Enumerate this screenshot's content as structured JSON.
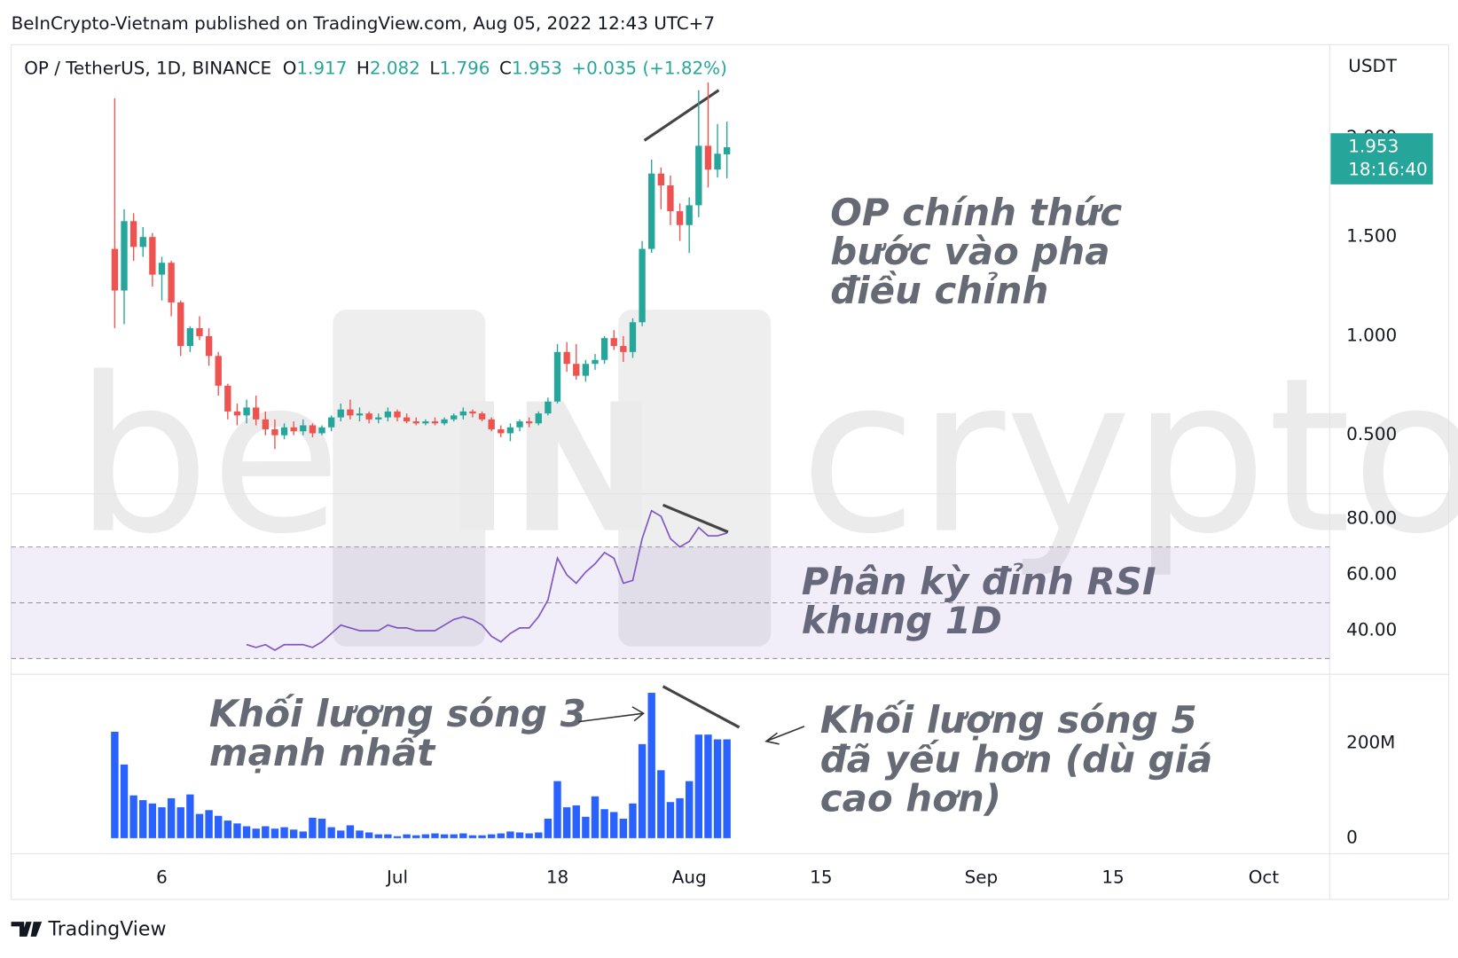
{
  "header": "BeInCrypto-Vietnam published on TradingView.com, Aug 05, 2022 12:43 UTC+7",
  "footer": "TradingView",
  "watermark": [
    "be",
    "IN",
    "crypto"
  ],
  "annotations": [
    [
      "OP chính thức",
      "bước vào pha",
      "điều chỉnh"
    ],
    [
      "Phân kỳ đỉnh RSI",
      "khung 1D"
    ],
    [
      "Khối lượng sóng 3",
      "mạnh nhất"
    ],
    [
      "Khối lượng sóng 5",
      "đã yếu hơn (dù giá",
      "cao hơn)"
    ]
  ],
  "chart_data": [
    {
      "type": "candlestick",
      "symbol": "OP / TetherUS, 1D, BINANCE",
      "ohlc_labels": [
        "O",
        "H",
        "L",
        "C"
      ],
      "change": "+0.035 (+1.82%)",
      "axis_unit": "USDT",
      "countdown": "18:16:40",
      "up_color": "#26a69a",
      "down_color": "#ef5350",
      "grid": false,
      "x": [
        "2022-06-01",
        "2022-06-02",
        "2022-06-03",
        "2022-06-04",
        "2022-06-05",
        "2022-06-06",
        "2022-06-07",
        "2022-06-08",
        "2022-06-09",
        "2022-06-10",
        "2022-06-11",
        "2022-06-12",
        "2022-06-13",
        "2022-06-14",
        "2022-06-15",
        "2022-06-16",
        "2022-06-17",
        "2022-06-18",
        "2022-06-19",
        "2022-06-20",
        "2022-06-21",
        "2022-06-22",
        "2022-06-23",
        "2022-06-24",
        "2022-06-25",
        "2022-06-26",
        "2022-06-27",
        "2022-06-28",
        "2022-06-29",
        "2022-06-30",
        "2022-07-01",
        "2022-07-02",
        "2022-07-03",
        "2022-07-04",
        "2022-07-05",
        "2022-07-06",
        "2022-07-07",
        "2022-07-08",
        "2022-07-09",
        "2022-07-10",
        "2022-07-11",
        "2022-07-12",
        "2022-07-13",
        "2022-07-14",
        "2022-07-15",
        "2022-07-16",
        "2022-07-17",
        "2022-07-18",
        "2022-07-19",
        "2022-07-20",
        "2022-07-21",
        "2022-07-22",
        "2022-07-23",
        "2022-07-24",
        "2022-07-25",
        "2022-07-26",
        "2022-07-27",
        "2022-07-28",
        "2022-07-29",
        "2022-07-30",
        "2022-07-31",
        "2022-08-01",
        "2022-08-02",
        "2022-08-03",
        "2022-08-04",
        "2022-08-05"
      ],
      "open": [
        1.44,
        1.23,
        1.58,
        1.45,
        1.5,
        1.31,
        1.37,
        1.17,
        0.95,
        1.04,
        1.0,
        0.9,
        0.75,
        0.62,
        0.6,
        0.64,
        0.58,
        0.53,
        0.5,
        0.54,
        0.52,
        0.55,
        0.51,
        0.54,
        0.59,
        0.63,
        0.6,
        0.61,
        0.58,
        0.59,
        0.62,
        0.59,
        0.57,
        0.56,
        0.57,
        0.56,
        0.58,
        0.6,
        0.62,
        0.61,
        0.58,
        0.53,
        0.51,
        0.54,
        0.57,
        0.56,
        0.61,
        0.67,
        0.92,
        0.86,
        0.8,
        0.86,
        0.88,
        0.99,
        0.95,
        0.92,
        1.07,
        1.44,
        1.82,
        1.76,
        1.63,
        1.56,
        1.66,
        1.96,
        1.84,
        1.917
      ],
      "high": [
        2.2,
        1.64,
        1.62,
        1.55,
        1.52,
        1.4,
        1.38,
        1.18,
        1.05,
        1.1,
        1.04,
        0.92,
        0.76,
        0.66,
        0.68,
        0.7,
        0.62,
        0.58,
        0.56,
        0.57,
        0.58,
        0.56,
        0.55,
        0.6,
        0.66,
        0.68,
        0.64,
        0.62,
        0.61,
        0.64,
        0.63,
        0.61,
        0.59,
        0.58,
        0.59,
        0.59,
        0.61,
        0.64,
        0.63,
        0.62,
        0.59,
        0.55,
        0.56,
        0.58,
        0.59,
        0.62,
        0.69,
        0.96,
        0.97,
        0.96,
        0.88,
        0.91,
        1.0,
        1.03,
        1.0,
        1.09,
        1.48,
        1.89,
        1.85,
        1.81,
        1.67,
        1.7,
        2.24,
        2.28,
        2.07,
        2.082
      ],
      "low": [
        1.04,
        1.06,
        1.38,
        1.4,
        1.25,
        1.18,
        1.1,
        0.9,
        0.92,
        0.98,
        0.85,
        0.7,
        0.58,
        0.55,
        0.56,
        0.55,
        0.5,
        0.43,
        0.48,
        0.5,
        0.5,
        0.49,
        0.5,
        0.52,
        0.57,
        0.58,
        0.57,
        0.56,
        0.56,
        0.57,
        0.57,
        0.56,
        0.55,
        0.55,
        0.55,
        0.55,
        0.57,
        0.58,
        0.59,
        0.57,
        0.52,
        0.49,
        0.47,
        0.52,
        0.54,
        0.55,
        0.6,
        0.66,
        0.82,
        0.78,
        0.77,
        0.83,
        0.86,
        0.93,
        0.87,
        0.89,
        1.05,
        1.42,
        1.64,
        1.56,
        1.48,
        1.42,
        1.6,
        1.75,
        1.8,
        1.796
      ],
      "close": [
        1.23,
        1.58,
        1.45,
        1.5,
        1.31,
        1.37,
        1.17,
        0.95,
        1.04,
        1.0,
        0.9,
        0.75,
        0.62,
        0.6,
        0.64,
        0.58,
        0.53,
        0.5,
        0.54,
        0.52,
        0.55,
        0.51,
        0.54,
        0.59,
        0.63,
        0.6,
        0.61,
        0.58,
        0.59,
        0.62,
        0.59,
        0.57,
        0.56,
        0.57,
        0.56,
        0.58,
        0.6,
        0.62,
        0.61,
        0.58,
        0.53,
        0.51,
        0.54,
        0.57,
        0.56,
        0.61,
        0.67,
        0.92,
        0.86,
        0.8,
        0.86,
        0.88,
        0.99,
        0.95,
        0.92,
        1.07,
        1.44,
        1.82,
        1.76,
        1.63,
        1.56,
        1.66,
        1.96,
        1.84,
        1.92,
        1.953
      ],
      "xlim": [
        "2022-05-21",
        "2022-10-08"
      ],
      "xticks": [
        {
          "value": "2022-06-06",
          "label": "6"
        },
        {
          "value": "2022-07-01",
          "label": "Jul"
        },
        {
          "value": "2022-07-18",
          "label": "18"
        },
        {
          "value": "2022-08-01",
          "label": "Aug"
        },
        {
          "value": "2022-08-15",
          "label": "15"
        },
        {
          "value": "2022-09-01",
          "label": "Sep"
        },
        {
          "value": "2022-09-15",
          "label": "15"
        },
        {
          "value": "2022-10-01",
          "label": "Oct"
        }
      ],
      "ylim": [
        0.209,
        2.47
      ],
      "yticks": [
        {
          "value": 0.5,
          "label": "0.500"
        },
        {
          "value": 1,
          "label": "1.000"
        },
        {
          "value": 1.5,
          "label": "1.500"
        },
        {
          "value": 2,
          "label": "2.000"
        }
      ]
    },
    {
      "type": "line",
      "name": "RSI",
      "color": "#7e57c2",
      "band": [
        30,
        70
      ],
      "midline": 50,
      "values": [
        null,
        null,
        null,
        null,
        null,
        null,
        null,
        null,
        null,
        null,
        null,
        null,
        null,
        null,
        35,
        34,
        35,
        33,
        35,
        35,
        35,
        34,
        36,
        39,
        42,
        41,
        40,
        40,
        40,
        42,
        41,
        41,
        40,
        40,
        40,
        42,
        44,
        45,
        44,
        42,
        38,
        36,
        39,
        41,
        41,
        45,
        51,
        66,
        60,
        57,
        61,
        64,
        68,
        66,
        57,
        58,
        73,
        83,
        81,
        73,
        70,
        72,
        77,
        74,
        74,
        75
      ],
      "ylim": [
        24.7,
        88.7
      ],
      "yticks": [
        {
          "value": 40,
          "label": "40.00"
        },
        {
          "value": 60,
          "label": "60.00"
        },
        {
          "value": 80,
          "label": "80.00"
        }
      ]
    },
    {
      "type": "bar",
      "name": "Volume",
      "color": "#2962ff",
      "values": [
        224,
        155,
        90,
        80,
        73,
        65,
        84,
        65,
        92,
        51,
        59,
        47,
        37,
        31,
        25,
        20,
        25,
        20,
        23,
        18,
        14,
        43,
        41,
        23,
        16,
        27,
        16,
        12,
        8,
        8,
        4,
        8,
        6,
        8,
        10,
        8,
        8,
        10,
        6,
        6,
        8,
        10,
        14,
        12,
        10,
        12,
        41,
        120,
        65,
        69,
        45,
        88,
        61,
        55,
        41,
        73,
        198,
        306,
        143,
        76,
        84,
        120,
        218,
        218,
        208,
        208
      ],
      "ylim": [
        -31,
        343
      ],
      "yticks": [
        0,
        {
          "value": 200,
          "label": "200M"
        }
      ]
    }
  ]
}
